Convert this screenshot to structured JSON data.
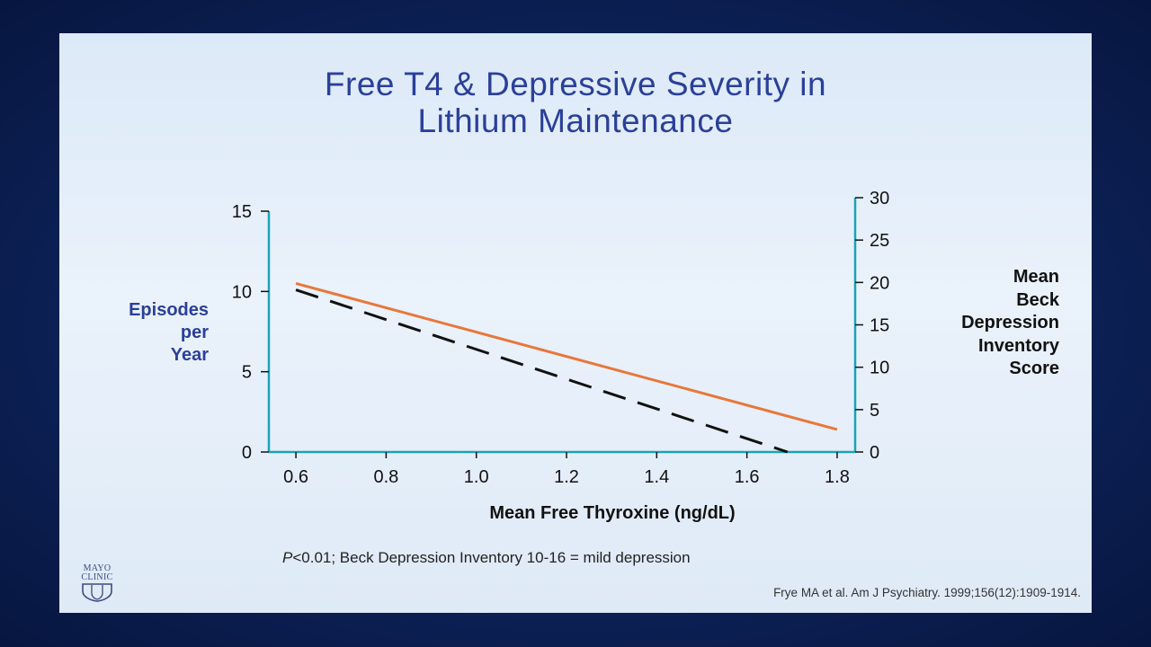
{
  "slide": {
    "title_line1": "Free T4 & Depressive Severity in",
    "title_line2": "Lithium Maintenance",
    "footnote_p": "P",
    "footnote_rest": "<0.01; Beck Depression Inventory 10-16 = mild depression",
    "citation": "Frye MA et al. Am J Psychiatry. 1999;156(12):1909-1914.",
    "logo_line1": "MAYO",
    "logo_line2": "CLINIC"
  },
  "colors": {
    "axis": "#1aa3b8",
    "episodes_line": "#e8773a",
    "bdi_line": "#111111",
    "title": "#2b3f9a"
  },
  "chart_data": {
    "type": "line",
    "xlabel": "Mean Free Thyroxine (ng/dL)",
    "ylabel_left_lines": [
      "Episodes",
      "per",
      "Year"
    ],
    "ylabel_right_lines": [
      "Mean",
      "Beck",
      "Depression",
      "Inventory",
      "Score"
    ],
    "x_ticks": [
      "0.6",
      "0.8",
      "1.0",
      "1.2",
      "1.4",
      "1.6",
      "1.8"
    ],
    "y_left_ticks": [
      "0",
      "5",
      "10",
      "15"
    ],
    "y_right_ticks": [
      "0",
      "5",
      "10",
      "15",
      "20",
      "25",
      "30"
    ],
    "xlim": [
      0.54,
      1.84
    ],
    "ylim_left": [
      0,
      15
    ],
    "ylim_right": [
      0,
      30
    ],
    "series": [
      {
        "axis": "left",
        "style": "solid",
        "x": [
          0.6,
          1.8
        ],
        "y": [
          10.5,
          1.4
        ]
      },
      {
        "axis": "left",
        "style": "dashed",
        "x": [
          0.6,
          1.69
        ],
        "y": [
          10.1,
          0
        ]
      }
    ]
  }
}
